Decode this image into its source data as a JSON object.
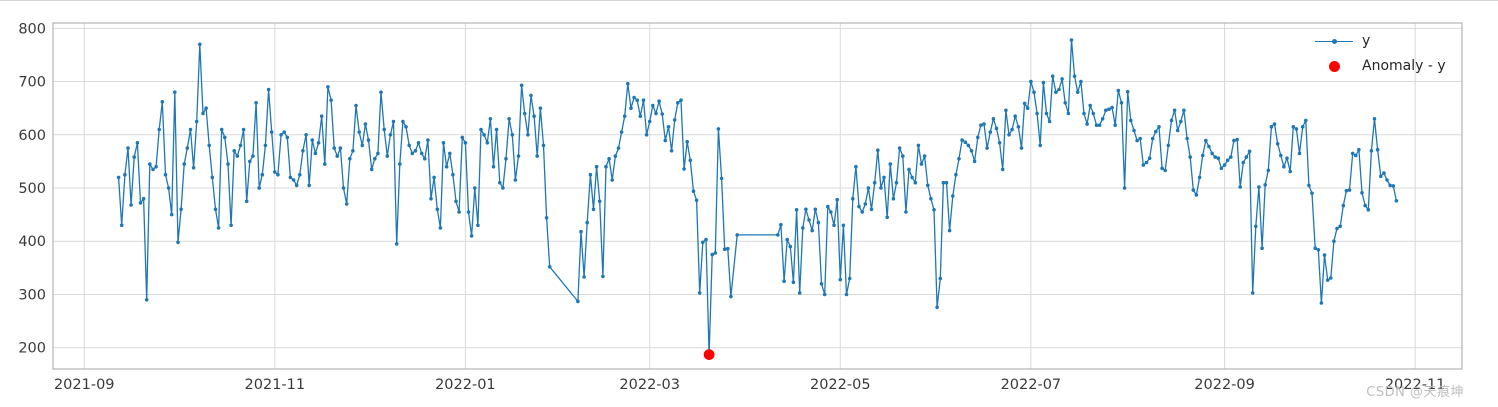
{
  "watermark": "CSDN @天痕坤",
  "legend": {
    "items": [
      {
        "label": "y",
        "marker": "line-dot",
        "color": "#1f77b4"
      },
      {
        "label": "Anomaly - y",
        "marker": "dot",
        "color": "#fe0000"
      }
    ]
  },
  "colors": {
    "line": "#1f77b4",
    "anomaly": "#fe0000",
    "grid": "#d9d9d9",
    "frame": "#b3b3b3",
    "tick_text": "#3a3a3a",
    "watermark": "#bdbdbd",
    "background": "#ffffff"
  },
  "chart_data": {
    "type": "line",
    "title": "",
    "xlabel": "",
    "ylabel": "",
    "legend_position": "upper right",
    "grid": true,
    "xlim": [
      "2021-08-22",
      "2022-11-16"
    ],
    "ylim": [
      160,
      810
    ],
    "y_ticks": [
      200,
      300,
      400,
      500,
      600,
      700,
      800
    ],
    "x_ticks": [
      {
        "date": "2021-09-01",
        "label": "2021-09"
      },
      {
        "date": "2021-11-01",
        "label": "2021-11"
      },
      {
        "date": "2022-01-01",
        "label": "2022-01"
      },
      {
        "date": "2022-03-01",
        "label": "2022-03"
      },
      {
        "date": "2022-05-01",
        "label": "2022-05"
      },
      {
        "date": "2022-07-01",
        "label": "2022-07"
      },
      {
        "date": "2022-09-01",
        "label": "2022-09"
      },
      {
        "date": "2022-11-01",
        "label": "2022-11"
      }
    ],
    "series": [
      {
        "name": "y",
        "color": "#1f77b4",
        "cadence": "daily",
        "segments": [
          {
            "start": "2021-09-12",
            "values": [
              520,
              430,
              525,
              575,
              468,
              558,
              585,
              472,
              480,
              290,
              545,
              535,
              540,
              610,
              662,
              525,
              500,
              450,
              680
            ]
          },
          {
            "start": "2021-10-01",
            "values": [
              398,
              460,
              545,
              575,
              610,
              538,
              625,
              770,
              640,
              650,
              580,
              520,
              460,
              425,
              610,
              595,
              545,
              430,
              570,
              560,
              580,
              610,
              475,
              550,
              560,
              660,
              500,
              525,
              580,
              685,
              605
            ]
          },
          {
            "start": "2021-11-01",
            "values": [
              530,
              525,
              600,
              605,
              595,
              520,
              515,
              505,
              525,
              570,
              600,
              505,
              590,
              565,
              585,
              635,
              545,
              690,
              665,
              575,
              560,
              575,
              500,
              470,
              555,
              570,
              655,
              605,
              580,
              620
            ]
          },
          {
            "start": "2021-12-01",
            "values": [
              590,
              535,
              555,
              565,
              680,
              610,
              560,
              600,
              625,
              395,
              545,
              625,
              615,
              580,
              565,
              570,
              585,
              565,
              555,
              590,
              480,
              520,
              460,
              425,
              585,
              540,
              565,
              525,
              475,
              455,
              595
            ]
          },
          {
            "start": "2022-01-01",
            "values": [
              585,
              455,
              410,
              500,
              430,
              610,
              600,
              585,
              630,
              540,
              610,
              510,
              500,
              555,
              630,
              600,
              515,
              560,
              693,
              640,
              600,
              674,
              635,
              560,
              650,
              580,
              444,
              352
            ]
          },
          {
            "start": "2022-02-06",
            "values": [
              287,
              418,
              333,
              435,
              525,
              460,
              540,
              475,
              334,
              540,
              555,
              515,
              560,
              575,
              605,
              635,
              696,
              650,
              670,
              665,
              635,
              665,
              600
            ]
          },
          {
            "start": "2022-03-01",
            "values": [
              625,
              655,
              640,
              663,
              639,
              589,
              615,
              570,
              628,
              660,
              665,
              536,
              587,
              552,
              494,
              477,
              303,
              398,
              403,
              187,
              375,
              378,
              611,
              518,
              385,
              386,
              296
            ]
          },
          {
            "start": "2022-03-29",
            "values": [
              412
            ]
          },
          {
            "start": "2022-04-11",
            "values": [
              412,
              431,
              325,
              403,
              390,
              323,
              459,
              303,
              425,
              460,
              440,
              420,
              460,
              435,
              320,
              300,
              465,
              455,
              430,
              478
            ]
          },
          {
            "start": "2022-05-01",
            "values": [
              328,
              430,
              300,
              330,
              480,
              540,
              465,
              455,
              470,
              500,
              460,
              510,
              571,
              500,
              520,
              445,
              545,
              480,
              510,
              575,
              560,
              455,
              535,
              520,
              510,
              580,
              545,
              560,
              505,
              480,
              459
            ]
          },
          {
            "start": "2022-06-01",
            "values": [
              276,
              330,
              510,
              510,
              420,
              485,
              525,
              555,
              590,
              586,
              580,
              570,
              550,
              595,
              618,
              620,
              575,
              605,
              630,
              612,
              585,
              535,
              646,
              600,
              610,
              635,
              615,
              575,
              659,
              650
            ]
          },
          {
            "start": "2022-07-01",
            "values": [
              700,
              680,
              640,
              580,
              698,
              640,
              625,
              710,
              680,
              685,
              705,
              660,
              640,
              778,
              710,
              680,
              700,
              640,
              620,
              655,
              640,
              618,
              618,
              630,
              646,
              648,
              651,
              618,
              683,
              660,
              500
            ]
          },
          {
            "start": "2022-08-01",
            "values": [
              681,
              627,
              608,
              589,
              593,
              543,
              548,
              556,
              593,
              606,
              615,
              537,
              533,
              580,
              627,
              646,
              608,
              625,
              646,
              593,
              558,
              496,
              487,
              520,
              561,
              589,
              578,
              565,
              558,
              556,
              537
            ]
          },
          {
            "start": "2022-09-01",
            "values": [
              543,
              552,
              558,
              589,
              591,
              502,
              548,
              558,
              569,
              303,
              428,
              502,
              387,
              506,
              533,
              615,
              620,
              583,
              561,
              540,
              556,
              531,
              615,
              611,
              565,
              615,
              627,
              505,
              490,
              387
            ]
          },
          {
            "start": "2022-10-01",
            "values": [
              384,
              284,
              374,
              327,
              331,
              400,
              424,
              428,
              467,
              495,
              496,
              565,
              561,
              572,
              491,
              467,
              459,
              570,
              630,
              572,
              522,
              528,
              515,
              505,
              504,
              476
            ]
          }
        ]
      }
    ],
    "anomaly_series": {
      "name": "Anomaly - y",
      "color": "#fe0000",
      "points": [
        [
          "2022-03-20",
          187
        ]
      ]
    }
  }
}
